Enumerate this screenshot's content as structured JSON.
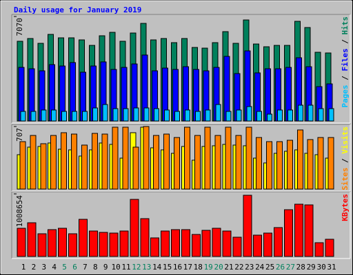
{
  "title": "Daily usage for January 2019",
  "legend_separator": " / ",
  "chart_data": [
    {
      "type": "bar",
      "ylim": [
        0,
        7070
      ],
      "yticks": [
        7070
      ],
      "series": [
        {
          "name": "Hits",
          "color": "#00805c",
          "values": [
            5395,
            5580,
            5255,
            5860,
            5627,
            5627,
            5487,
            5116,
            5767,
            5999,
            5395,
            5953,
            6604,
            5487,
            5580,
            5302,
            5580,
            4977,
            4930,
            5302,
            6046,
            5255,
            6837,
            5209,
            5023,
            5116,
            5116,
            6743,
            6325,
            4651,
            4605
          ]
        },
        {
          "name": "Files",
          "color": "#0000ff",
          "values": [
            3627,
            3534,
            3395,
            3813,
            3720,
            3953,
            3302,
            3720,
            3999,
            3488,
            3627,
            3860,
            4464,
            3395,
            3581,
            3488,
            3674,
            3488,
            3395,
            3627,
            4371,
            3209,
            4743,
            3255,
            3534,
            3534,
            3627,
            4278,
            3674,
            2325,
            2511
          ]
        },
        {
          "name": "Pages",
          "color": "#00c0ff",
          "values": [
            651,
            651,
            744,
            744,
            651,
            651,
            651,
            884,
            1116,
            837,
            837,
            884,
            884,
            837,
            744,
            651,
            744,
            651,
            744,
            1116,
            651,
            744,
            977,
            651,
            465,
            744,
            744,
            1070,
            1070,
            837,
            837
          ]
        }
      ]
    },
    {
      "type": "bar",
      "ylim": [
        0,
        707
      ],
      "yticks": [
        707
      ],
      "series": [
        {
          "name": "Visits",
          "color": "#ffff00",
          "values": [
            389,
            474,
            482,
            521,
            451,
            443,
            373,
            443,
            521,
            505,
            350,
            637,
            699,
            466,
            443,
            404,
            482,
            326,
            482,
            490,
            505,
            497,
            490,
            350,
            295,
            404,
            427,
            443,
            404,
            389,
            350
          ]
        },
        {
          "name": "Sites",
          "color": "#ff8000",
          "values": [
            536,
            606,
            513,
            606,
            637,
            622,
            497,
            629,
            622,
            699,
            699,
            474,
            707,
            606,
            622,
            583,
            699,
            606,
            699,
            606,
            699,
            606,
            699,
            583,
            536,
            536,
            552,
            668,
            559,
            583,
            583
          ]
        }
      ]
    },
    {
      "type": "bar",
      "ylim": [
        0,
        1008654
      ],
      "yticks": [
        1008654
      ],
      "categories": [
        "1",
        "2",
        "3",
        "4",
        "5",
        "6",
        "7",
        "8",
        "9",
        "10",
        "11",
        "12",
        "13",
        "14",
        "15",
        "16",
        "17",
        "18",
        "19",
        "20",
        "21",
        "22",
        "23",
        "24",
        "25",
        "26",
        "27",
        "28",
        "29",
        "30",
        "31"
      ],
      "category_colors": [
        "#000000",
        "#000000",
        "#000000",
        "#000000",
        "#00805c",
        "#00805c",
        "#000000",
        "#000000",
        "#000000",
        "#000000",
        "#000000",
        "#00805c",
        "#00805c",
        "#000000",
        "#000000",
        "#000000",
        "#000000",
        "#000000",
        "#00805c",
        "#00805c",
        "#000000",
        "#000000",
        "#000000",
        "#000000",
        "#000000",
        "#00805c",
        "#00805c",
        "#000000",
        "#000000",
        "#000000",
        "#000000"
      ],
      "series": [
        {
          "name": "KBytes",
          "color": "#ff0000",
          "values": [
            454444,
            543116,
            365772,
            432276,
            454444,
            365772,
            598536,
            410108,
            387940,
            376856,
            410108,
            919972,
            609620,
            299268,
            410108,
            432276,
            432276,
            354688,
            421192,
            454444,
            410108,
            310352,
            986476,
            343604,
            376856,
            465528,
            753712,
            842384,
            831300,
            221680,
            277100
          ]
        }
      ]
    }
  ]
}
